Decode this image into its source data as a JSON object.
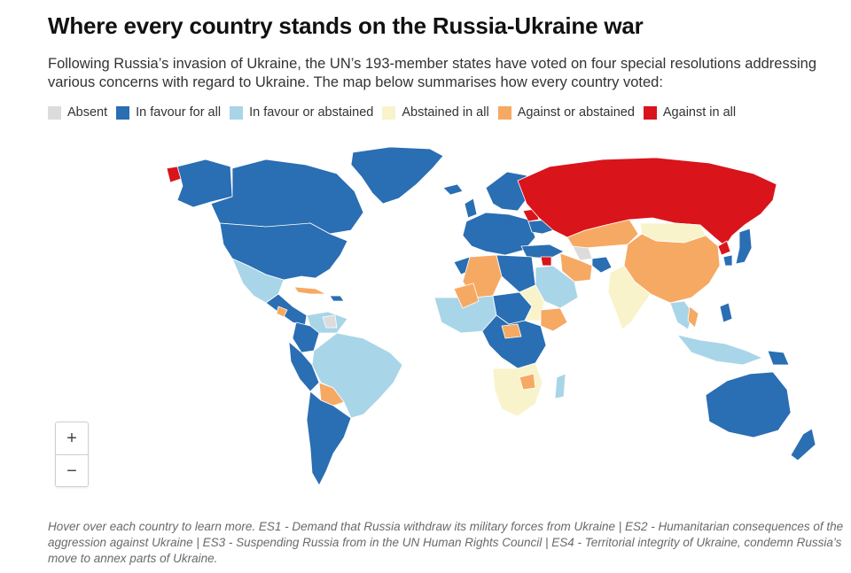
{
  "header": {
    "title": "Where every country stands on the Russia-Ukraine war",
    "subtitle": "Following Russia’s invasion of Ukraine, the UN’s 193-member states have voted on four special resolutions addressing various concerns with regard to Ukraine. The map below summarises how every country voted:"
  },
  "legend": [
    {
      "label": "Absent",
      "color": "#dcdcdc"
    },
    {
      "label": "In favour for all",
      "color": "#2a6eb3"
    },
    {
      "label": "In favour or abstained",
      "color": "#a9d5e8"
    },
    {
      "label": "Abstained in all",
      "color": "#f8f3cb"
    },
    {
      "label": "Against or abstained",
      "color": "#f6a963"
    },
    {
      "label": "Against in all",
      "color": "#d9141b"
    }
  ],
  "zoom": {
    "in_label": "+",
    "out_label": "−"
  },
  "footnote": "Hover over each country to learn more. ES1 - Demand that Russia withdraw its military forces from Ukraine | ES2 - Humanitarian consequences of the aggression against Ukraine | ES3 - Suspending Russia from in the UN Human Rights Council | ES4 - Territorial integrity of Ukraine, condemn Russia’s move to annex parts of Ukraine."
}
